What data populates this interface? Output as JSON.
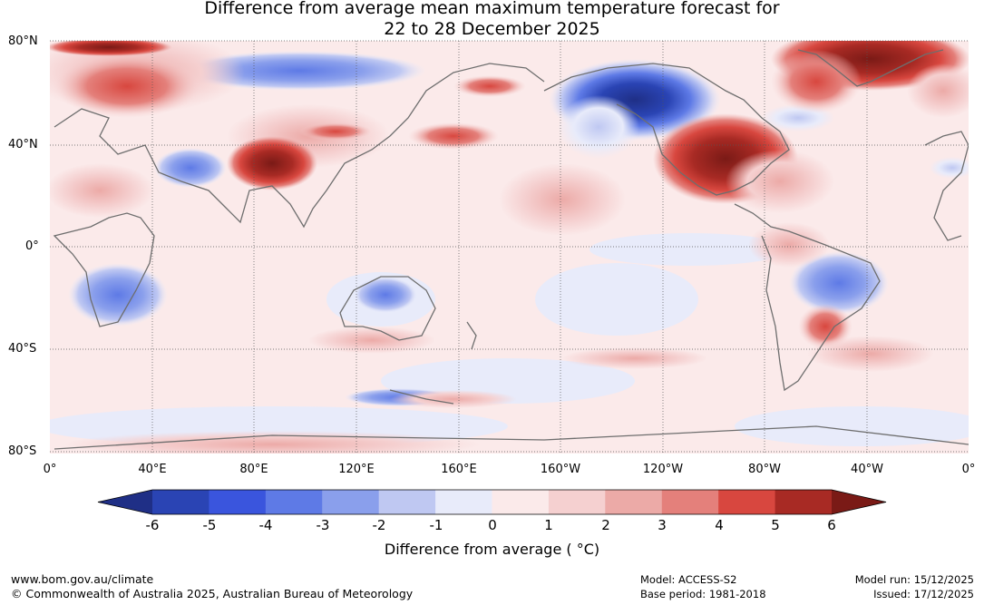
{
  "title_line1": "Difference from average mean maximum temperature forecast for",
  "title_line2": "22 to 28 December 2025",
  "lat_labels": [
    "80°N",
    "40°N",
    "0°",
    "40°S",
    "80°S"
  ],
  "lon_labels": [
    "0°",
    "40°E",
    "80°E",
    "120°E",
    "160°E",
    "160°W",
    "120°W",
    "80°W",
    "40°W",
    "0°"
  ],
  "colorbar": {
    "title": "Difference from average ( °C)",
    "ticks": [
      "-6",
      "-5",
      "-4",
      "-3",
      "-2",
      "-1",
      "0",
      "1",
      "2",
      "3",
      "4",
      "5",
      "6"
    ],
    "colors": [
      "#1f2f86",
      "#2a44b4",
      "#3a55dd",
      "#5e7ae6",
      "#8a9fec",
      "#bfc8f2",
      "#e8ebfa",
      "#fbeaea",
      "#f5d0d0",
      "#ecaaa7",
      "#e4807b",
      "#d8473f",
      "#a82a24",
      "#7a1a16"
    ]
  },
  "footer": {
    "website": "www.bom.gov.au/climate",
    "copyright": "© Commonwealth of Australia 2025, Australian Bureau of Meteorology",
    "model": "Model: ACCESS-S2",
    "base_period": "Base period: 1981-2018",
    "model_run": "Model run: 15/12/2025",
    "issued": "Issued: 17/12/2025"
  }
}
